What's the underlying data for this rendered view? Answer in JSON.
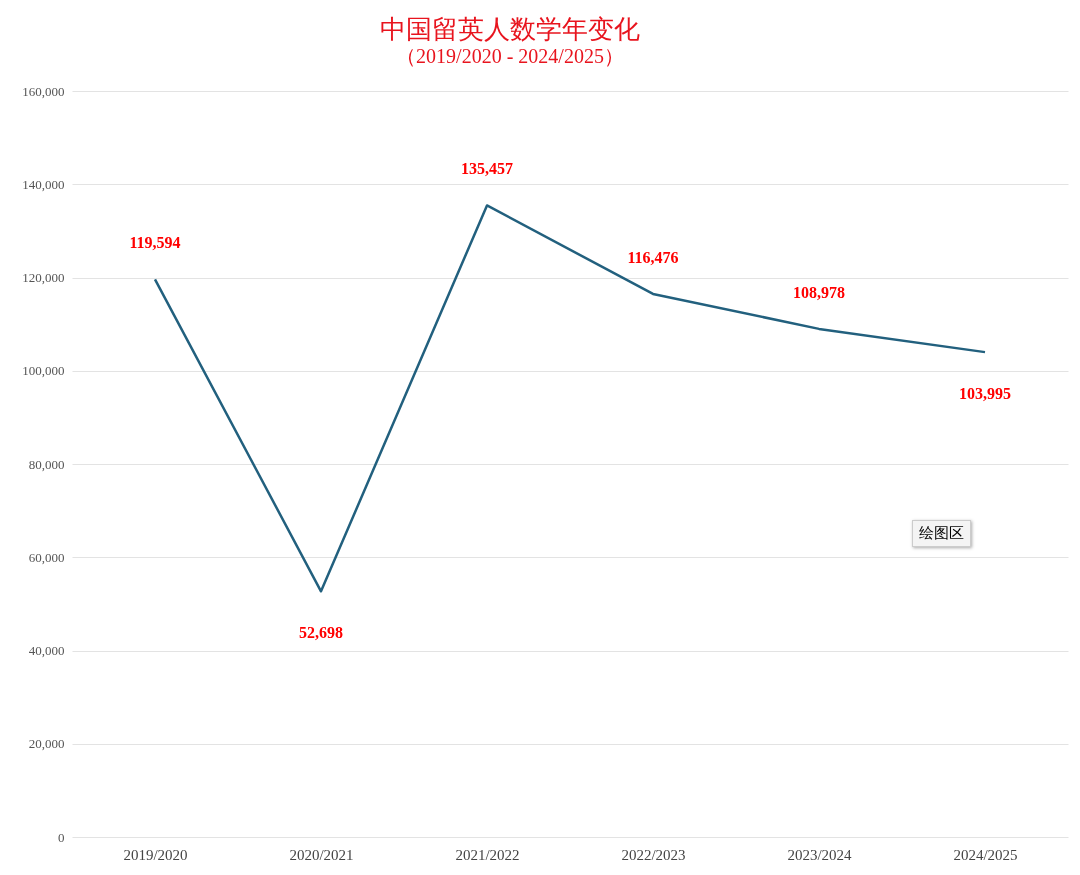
{
  "chart_data": {
    "type": "line",
    "title": "中国留英人数学年变化",
    "subtitle": "（2019/2020 - 2024/2025）",
    "categories": [
      "2019/2020",
      "2020/2021",
      "2021/2022",
      "2022/2023",
      "2023/2024",
      "2024/2025"
    ],
    "series": [
      {
        "color": "#22607e",
        "values": [
          119594,
          52698,
          135457,
          116476,
          108978,
          103995
        ],
        "value_labels": [
          "119,594",
          "52,698",
          "135,457",
          "116,476",
          "108,978",
          "103,995"
        ]
      }
    ],
    "ylim": [
      0,
      160000
    ],
    "yticks": [
      0,
      {
        "value": 20000,
        "label": "20,000"
      },
      {
        "value": 40000,
        "label": "40,000"
      },
      {
        "value": 60000,
        "label": "60,000"
      },
      {
        "value": 80000,
        "label": "80,000"
      },
      {
        "value": 100000,
        "label": "100,000"
      },
      {
        "value": 120000,
        "label": "120,000"
      },
      {
        "value": 140000,
        "label": "140,000"
      },
      {
        "value": 160000,
        "label": "160,000"
      }
    ],
    "grid": "y",
    "marker": "none",
    "line_style": "solid",
    "annotations": [
      "绘图区"
    ]
  }
}
